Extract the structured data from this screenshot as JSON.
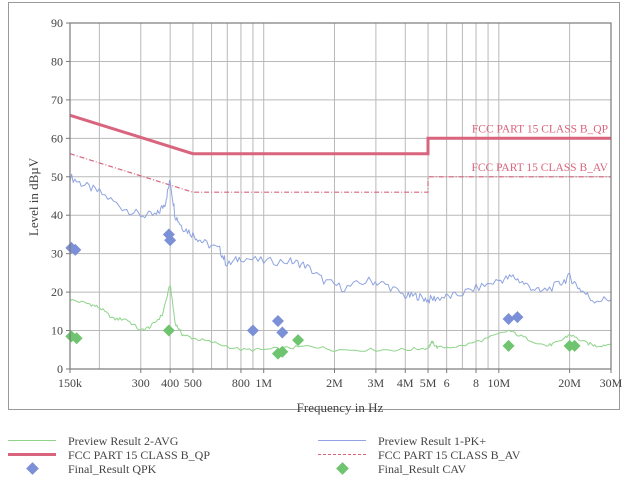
{
  "chart_data": {
    "type": "line",
    "xlabel": "Frequency in Hz",
    "ylabel": "Level in dBµV",
    "xscale": "log",
    "xlim": [
      150000,
      30000000
    ],
    "ylim": [
      0,
      90
    ],
    "grid": true,
    "y_ticks": [
      0,
      10,
      20,
      30,
      40,
      50,
      60,
      70,
      80,
      90
    ],
    "x_ticks": [
      {
        "v": 150000,
        "l": "150k"
      },
      {
        "v": 300000,
        "l": "300"
      },
      {
        "v": 400000,
        "l": "400"
      },
      {
        "v": 500000,
        "l": "500"
      },
      {
        "v": 800000,
        "l": "800"
      },
      {
        "v": 1000000,
        "l": "1M"
      },
      {
        "v": 2000000,
        "l": "2M"
      },
      {
        "v": 3000000,
        "l": "3M"
      },
      {
        "v": 4000000,
        "l": "4M"
      },
      {
        "v": 5000000,
        "l": "5M"
      },
      {
        "v": 6000000,
        "l": "6"
      },
      {
        "v": 8000000,
        "l": "8"
      },
      {
        "v": 10000000,
        "l": "10M"
      },
      {
        "v": 20000000,
        "l": "20M"
      },
      {
        "v": 30000000,
        "l": "30M"
      }
    ],
    "x_gridlines": [
      150000,
      200000,
      300000,
      400000,
      500000,
      600000,
      700000,
      800000,
      900000,
      1000000,
      2000000,
      3000000,
      4000000,
      5000000,
      6000000,
      7000000,
      8000000,
      9000000,
      10000000,
      20000000,
      30000000
    ],
    "limits": [
      {
        "name": "FCC PART 15 CLASS B_QP",
        "label": "FCC PART 15 CLASS B_QP",
        "color": "#d9647e",
        "style": "solid",
        "points": [
          [
            150000,
            66
          ],
          [
            500000,
            56
          ],
          [
            5000000,
            56
          ],
          [
            5000000,
            60
          ],
          [
            30000000,
            60
          ]
        ]
      },
      {
        "name": "FCC PART 15 CLASS B_AV",
        "label": "FCC PART 15 CLASS B_AV",
        "color": "#d9647e",
        "style": "dashdot",
        "points": [
          [
            150000,
            56
          ],
          [
            500000,
            46
          ],
          [
            5000000,
            46
          ],
          [
            5000000,
            50
          ],
          [
            30000000,
            50
          ]
        ]
      }
    ],
    "series": [
      {
        "name": "Preview Result 1-PK+",
        "color": "#8fa4e0",
        "points": [
          [
            150000,
            50
          ],
          [
            170000,
            48
          ],
          [
            200000,
            46
          ],
          [
            250000,
            42
          ],
          [
            300000,
            40
          ],
          [
            350000,
            40
          ],
          [
            380000,
            43
          ],
          [
            400000,
            49
          ],
          [
            420000,
            40
          ],
          [
            450000,
            37
          ],
          [
            500000,
            35
          ],
          [
            550000,
            33
          ],
          [
            650000,
            31
          ],
          [
            700000,
            27
          ],
          [
            800000,
            29
          ],
          [
            1000000,
            28
          ],
          [
            1300000,
            28
          ],
          [
            1500000,
            27
          ],
          [
            1800000,
            23
          ],
          [
            2200000,
            21
          ],
          [
            2800000,
            23
          ],
          [
            3300000,
            22
          ],
          [
            4000000,
            19
          ],
          [
            4500000,
            19
          ],
          [
            5000000,
            18
          ],
          [
            5500000,
            18.5
          ],
          [
            6500000,
            19
          ],
          [
            8000000,
            21
          ],
          [
            10000000,
            23
          ],
          [
            11500000,
            24
          ],
          [
            13000000,
            22
          ],
          [
            15000000,
            20
          ],
          [
            18000000,
            22
          ],
          [
            20000000,
            24
          ],
          [
            22000000,
            21
          ],
          [
            25000000,
            18
          ],
          [
            30000000,
            18
          ]
        ]
      },
      {
        "name": "Preview Result 2-AVG",
        "color": "#8fd48a",
        "points": [
          [
            150000,
            18
          ],
          [
            180000,
            17
          ],
          [
            200000,
            16
          ],
          [
            230000,
            13
          ],
          [
            260000,
            13
          ],
          [
            300000,
            10
          ],
          [
            330000,
            11
          ],
          [
            370000,
            14
          ],
          [
            400000,
            22
          ],
          [
            420000,
            12
          ],
          [
            450000,
            9
          ],
          [
            500000,
            8
          ],
          [
            600000,
            7
          ],
          [
            800000,
            5
          ],
          [
            1000000,
            5
          ],
          [
            1300000,
            5.5
          ],
          [
            1600000,
            6
          ],
          [
            2000000,
            5
          ],
          [
            3000000,
            5
          ],
          [
            4000000,
            5
          ],
          [
            5000000,
            5.5
          ],
          [
            5200000,
            7
          ],
          [
            5500000,
            5.5
          ],
          [
            7000000,
            6
          ],
          [
            9000000,
            8
          ],
          [
            11000000,
            10
          ],
          [
            13000000,
            8
          ],
          [
            16000000,
            6
          ],
          [
            18000000,
            7
          ],
          [
            20000000,
            9
          ],
          [
            23000000,
            7
          ],
          [
            26000000,
            6
          ],
          [
            30000000,
            6.5
          ]
        ]
      }
    ],
    "markers": [
      {
        "name": "Final_Result QPK",
        "color": "#7b90d6",
        "points": [
          [
            152000,
            31.5
          ],
          [
            158000,
            31
          ],
          [
            395000,
            35
          ],
          [
            400000,
            33.5
          ],
          [
            900000,
            10
          ],
          [
            1150000,
            12.5
          ],
          [
            1200000,
            9.5
          ],
          [
            11000000,
            13
          ],
          [
            12000000,
            13.5
          ]
        ]
      },
      {
        "name": "Final_Result CAV",
        "color": "#6fc46f",
        "points": [
          [
            152000,
            8.5
          ],
          [
            160000,
            8
          ],
          [
            395000,
            10
          ],
          [
            1150000,
            4
          ],
          [
            1200000,
            4.5
          ],
          [
            1400000,
            7.5
          ],
          [
            11000000,
            6
          ],
          [
            20000000,
            6
          ],
          [
            21000000,
            6
          ]
        ]
      }
    ]
  },
  "legend": {
    "avg": "Preview Result 2-AVG",
    "pk": "Preview Result 1-PK+",
    "qp_limit": "FCC PART 15 CLASS B_QP",
    "av_limit": "FCC PART 15 CLASS B_AV",
    "qpk": "Final_Result QPK",
    "cav": "Final_Result CAV"
  },
  "colors": {
    "limit": "#d9647e",
    "pk": "#8fa4e0",
    "avg": "#8fd48a",
    "qpk_marker": "#7b90d6",
    "cav_marker": "#6fc46f"
  }
}
